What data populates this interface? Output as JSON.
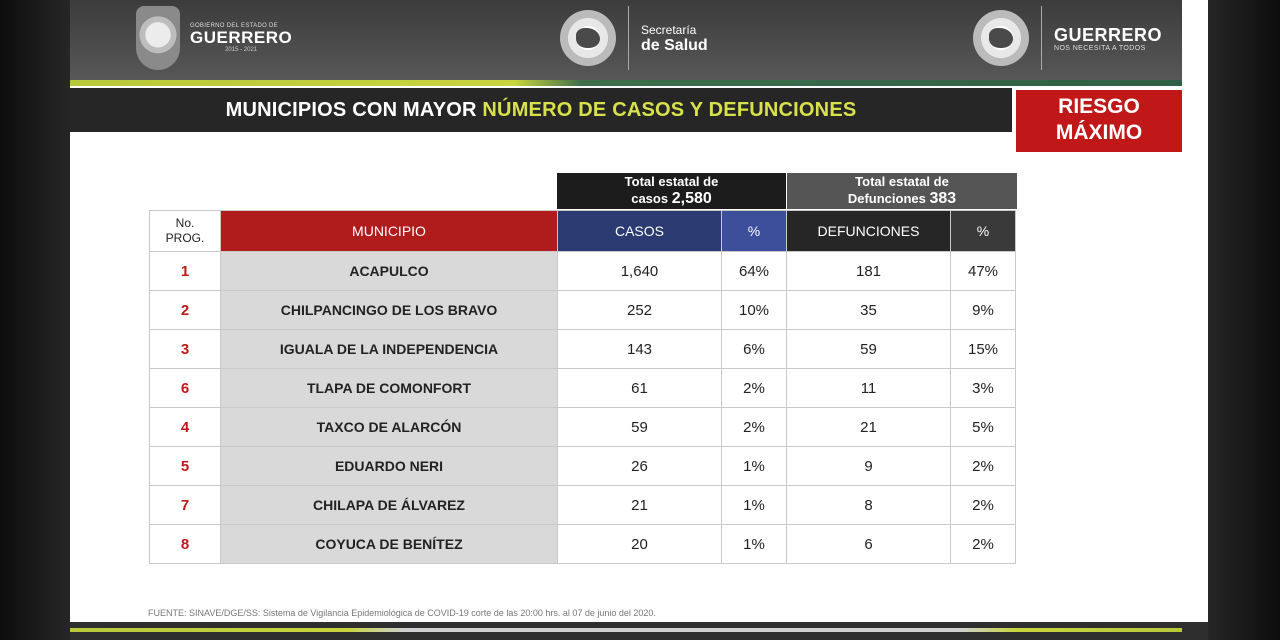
{
  "header": {
    "gov_small": "GOBIERNO DEL ESTADO DE",
    "gov_big": "GUERRERO",
    "gov_years": "2015 - 2021",
    "secretaria_line1": "Secretaría",
    "secretaria_line2": "de Salud",
    "guerrero": "GUERRERO",
    "guerrero_sub": "NOS NECESITA A TODOS"
  },
  "title": {
    "part1": "MUNICIPIOS CON MAYOR ",
    "highlight": "NÚMERO DE CASOS Y DEFUNCIONES"
  },
  "risk": {
    "line1": "RIESGO",
    "line2": "MÁXIMO"
  },
  "totals": {
    "casos_line1": "Total estatal de",
    "casos_line2": "casos",
    "casos_value": "2,580",
    "def_line1": "Total estatal de",
    "def_line2": "Defunciones",
    "def_value": "383"
  },
  "table": {
    "headers": {
      "no_line1": "No.",
      "no_line2": "PROG.",
      "municipio": "MUNICIPIO",
      "casos": "CASOS",
      "casos_pct": "%",
      "defunciones": "DEFUNCIONES",
      "def_pct": "%"
    },
    "rows": [
      {
        "no": "1",
        "municipio": "ACAPULCO",
        "casos": "1,640",
        "casos_pct": "64%",
        "def": "181",
        "def_pct": "47%"
      },
      {
        "no": "2",
        "municipio": "CHILPANCINGO DE LOS BRAVO",
        "casos": "252",
        "casos_pct": "10%",
        "def": "35",
        "def_pct": "9%"
      },
      {
        "no": "3",
        "municipio": "IGUALA DE LA INDEPENDENCIA",
        "casos": "143",
        "casos_pct": "6%",
        "def": "59",
        "def_pct": "15%"
      },
      {
        "no": "6",
        "municipio": "TLAPA DE COMONFORT",
        "casos": "61",
        "casos_pct": "2%",
        "def": "11",
        "def_pct": "3%"
      },
      {
        "no": "4",
        "municipio": "TAXCO DE ALARCÓN",
        "casos": "59",
        "casos_pct": "2%",
        "def": "21",
        "def_pct": "5%"
      },
      {
        "no": "5",
        "municipio": "EDUARDO NERI",
        "casos": "26",
        "casos_pct": "1%",
        "def": "9",
        "def_pct": "2%"
      },
      {
        "no": "7",
        "municipio": "CHILAPA DE ÁLVAREZ",
        "casos": "21",
        "casos_pct": "1%",
        "def": "8",
        "def_pct": "2%"
      },
      {
        "no": "8",
        "municipio": "COYUCA DE BENÍTEZ",
        "casos": "20",
        "casos_pct": "1%",
        "def": "6",
        "def_pct": "2%"
      }
    ]
  },
  "fuente": "FUENTE: SINAVE/DGE/SS: Sistema de Vigilancia Epidemiológica de COVID-19 corte de las 20:00 hrs. al 07 de junio del 2020.",
  "colors": {
    "red": "#c01818",
    "green_yellow": "#d9e14a",
    "casos_blue": "#2c3a72",
    "dark": "#262626"
  }
}
